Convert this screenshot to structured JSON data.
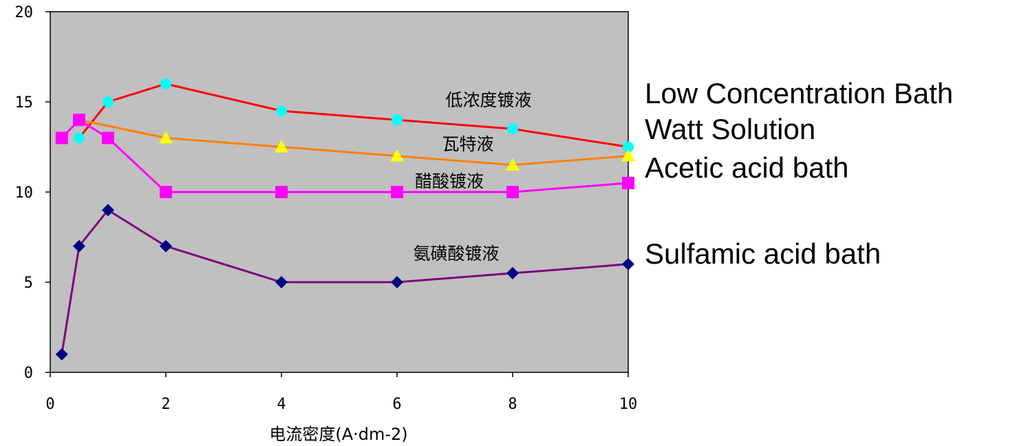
{
  "chart_data": {
    "type": "line",
    "xlabel": "电流密度(A·dm-2)",
    "ylabel": "",
    "xlim": [
      0,
      10
    ],
    "ylim": [
      0,
      20
    ],
    "xticks": [
      "0",
      "2",
      "4",
      "6",
      "8",
      "10"
    ],
    "yticks": [
      "0",
      "5",
      "10",
      "15",
      "20"
    ],
    "grid": false,
    "plot_background": "#c0c0c0",
    "series": [
      {
        "name": "Low Concentration Bath",
        "inline_label": "低浓度镀液",
        "line_color": "#ff0000",
        "marker_color": "#00ffff",
        "marker": "circle",
        "x": [
          0.5,
          1,
          2,
          4,
          6,
          8,
          10
        ],
        "y": [
          13,
          15,
          16,
          14.5,
          14,
          13.5,
          12.5
        ]
      },
      {
        "name": "Watt Solution",
        "inline_label": "瓦特液",
        "line_color": "#ff8000",
        "marker_color": "#ffff00",
        "marker": "triangle",
        "x": [
          0.5,
          2,
          4,
          6,
          8,
          10
        ],
        "y": [
          14,
          13,
          12.5,
          12,
          11.5,
          12
        ]
      },
      {
        "name": "Acetic acid bath",
        "inline_label": "醋酸镀液",
        "line_color": "#ff00ff",
        "marker_color": "#ff00ff",
        "marker": "square",
        "x": [
          0.2,
          0.5,
          1,
          2,
          4,
          6,
          8,
          10
        ],
        "y": [
          13,
          14,
          13,
          10,
          10,
          10,
          10,
          10.5
        ]
      },
      {
        "name": "Sulfamic acid bath",
        "inline_label": "氨磺酸镀液",
        "line_color": "#800080",
        "marker_color": "#000080",
        "marker": "diamond",
        "x": [
          0.2,
          0.5,
          1,
          2,
          4,
          6,
          8,
          10
        ],
        "y": [
          1,
          7,
          9,
          7,
          5,
          5,
          5.5,
          6
        ]
      }
    ]
  }
}
